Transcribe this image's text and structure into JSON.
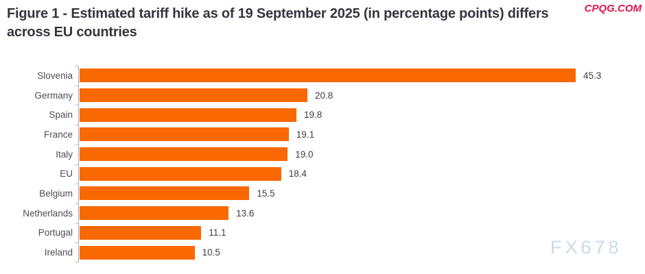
{
  "title": {
    "line1": "Figure 1 - Estimated tariff hike as of 19 September 2025 (in percentage points) differs",
    "line2": "across EU countries"
  },
  "watermarks": {
    "top_right": "CPQG.COM",
    "bottom_right": "FX678"
  },
  "colors": {
    "bar": "#f96802",
    "title_text": "#35353f",
    "axis": "#ababab",
    "top_watermark": "#e1164a",
    "bottom_watermark": "#ccd9ea"
  },
  "chart_data": {
    "type": "bar",
    "orientation": "horizontal",
    "title": "Figure 1 - Estimated tariff hike as of 19 September 2025 (in percentage points) differs across EU countries",
    "categories": [
      "Slovenia",
      "Germany",
      "Spain",
      "France",
      "Italy",
      "EU",
      "Belgium",
      "Netherlands",
      "Portugal",
      "Ireland"
    ],
    "values": [
      45.3,
      20.8,
      19.8,
      19.1,
      19.0,
      18.4,
      15.5,
      13.6,
      11.1,
      10.5
    ],
    "value_labels": [
      "45.3",
      "20.8",
      "19.8",
      "19.1",
      "19.0",
      "18.4",
      "15.5",
      "13.6",
      "11.1",
      "10.5"
    ],
    "xlabel": "",
    "ylabel": "",
    "xlim": [
      0,
      52
    ],
    "grid": false,
    "legend": false,
    "bar_color": "#f96802"
  }
}
